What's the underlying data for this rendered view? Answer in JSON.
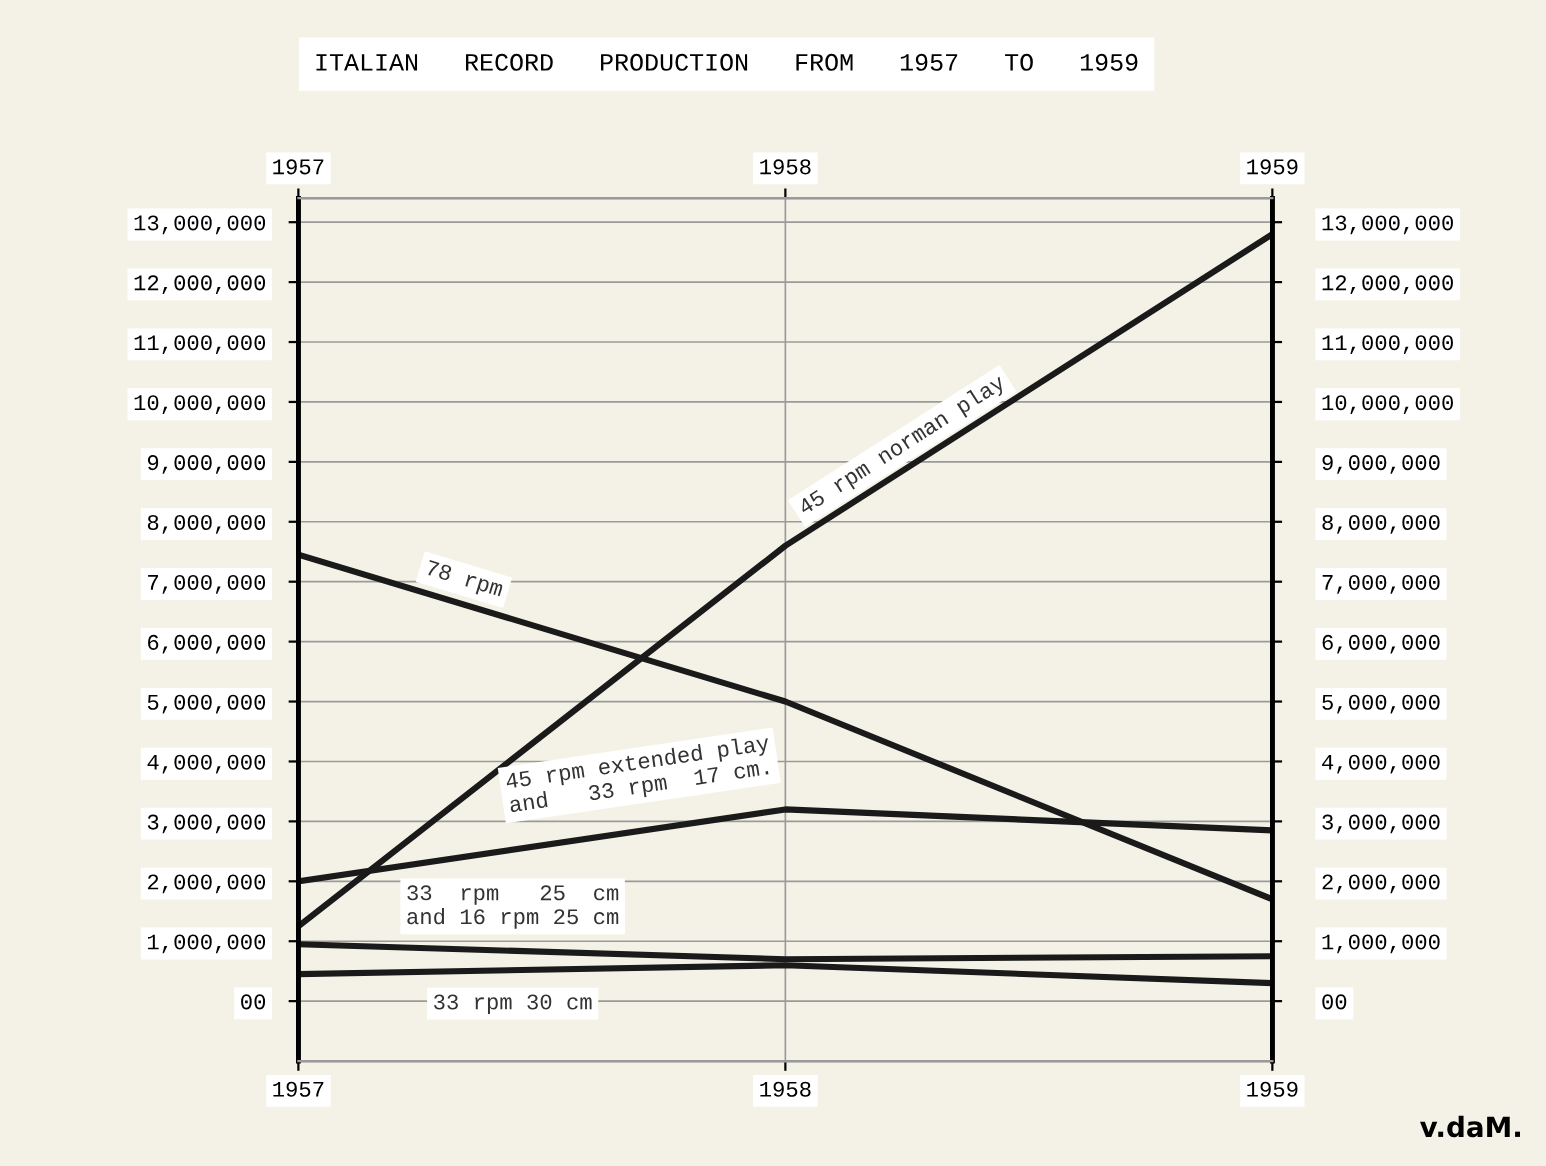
{
  "chart_data": {
    "type": "line",
    "title": "ITALIAN   RECORD   PRODUCTION   FROM   1957   TO   1959",
    "x": [
      1957,
      1958,
      1959
    ],
    "xlim": [
      1957,
      1959
    ],
    "xticks": [
      1957,
      1958,
      1959
    ],
    "x2lim": [
      1957,
      1959
    ],
    "x2ticks": [
      1957,
      1958,
      1959
    ],
    "ylim": [
      -1000000,
      13400000
    ],
    "yticks": [
      {
        "value": 0,
        "label": "00"
      },
      {
        "value": 1000000,
        "label": "1,000,000"
      },
      {
        "value": 2000000,
        "label": "2,000,000"
      },
      {
        "value": 3000000,
        "label": "3,000,000"
      },
      {
        "value": 4000000,
        "label": "4,000,000"
      },
      {
        "value": 5000000,
        "label": "5,000,000"
      },
      {
        "value": 6000000,
        "label": "6,000,000"
      },
      {
        "value": 7000000,
        "label": "7,000,000"
      },
      {
        "value": 8000000,
        "label": "8,000,000"
      },
      {
        "value": 9000000,
        "label": "9,000,000"
      },
      {
        "value": 10000000,
        "label": "10,000,000"
      },
      {
        "value": 11000000,
        "label": "11,000,000"
      },
      {
        "value": 12000000,
        "label": "12,000,000"
      },
      {
        "value": 13000000,
        "label": "13,000,000"
      }
    ],
    "y2lim": [
      -1000000,
      13400000
    ],
    "y2ticks": [
      {
        "value": 0,
        "label": "00"
      },
      {
        "value": 1000000,
        "label": "1,000,000"
      },
      {
        "value": 2000000,
        "label": "2,000,000"
      },
      {
        "value": 3000000,
        "label": "3,000,000"
      },
      {
        "value": 4000000,
        "label": "4,000,000"
      },
      {
        "value": 5000000,
        "label": "5,000,000"
      },
      {
        "value": 6000000,
        "label": "6,000,000"
      },
      {
        "value": 7000000,
        "label": "7,000,000"
      },
      {
        "value": 8000000,
        "label": "8,000,000"
      },
      {
        "value": 9000000,
        "label": "9,000,000"
      },
      {
        "value": 10000000,
        "label": "10,000,000"
      },
      {
        "value": 11000000,
        "label": "11,000,000"
      },
      {
        "value": 12000000,
        "label": "12,000,000"
      },
      {
        "value": 13000000,
        "label": "13,000,000"
      }
    ],
    "grid": true,
    "marker": "none",
    "line_style": "solid",
    "series": [
      {
        "name": "45 rpm norman play",
        "color": "#1a1a1a",
        "values": [
          1250000,
          7600000,
          12800000
        ]
      },
      {
        "name": "78 rpm",
        "color": "#1a1a1a",
        "values": [
          7450000,
          5000000,
          1700000
        ]
      },
      {
        "name": "45 rpm extended play\nand   33 rpm  17 cm.",
        "color": "#1a1a1a",
        "values": [
          2000000,
          3200000,
          2850000
        ]
      },
      {
        "name": "33  rpm   25  cm\nand 16 rpm 25 cm",
        "color": "#1a1a1a",
        "values": [
          950000,
          700000,
          750000
        ]
      },
      {
        "name": "33 rpm 30 cm",
        "color": "#1a1a1a",
        "values": [
          450000,
          600000,
          300000
        ]
      }
    ],
    "annotations": [
      "v.daM."
    ]
  }
}
